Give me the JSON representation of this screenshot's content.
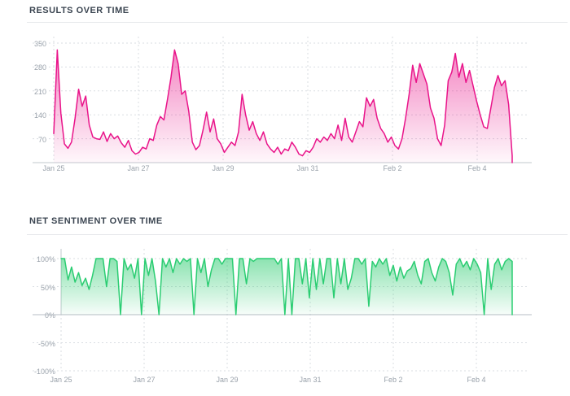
{
  "page": {
    "background": "#ffffff",
    "text_color": "#3b4551",
    "tick_color": "#9aa2ab",
    "grid_color": "#d9dde2",
    "axis_color": "#c2c8ce"
  },
  "chart_data": [
    {
      "type": "area",
      "title": "RESULTS OVER TIME",
      "xlabel": "",
      "ylabel": "",
      "ylim": [
        0,
        350
      ],
      "grid": "dashed",
      "legend": "none",
      "line_color": "#e9148a",
      "fill_color": "#e9148a",
      "fill_opacity_top": 0.55,
      "fill_opacity_bottom": 0.03,
      "x_tick_labels": [
        "Jan 25",
        "Jan 27",
        "Jan 29",
        "Jan 31",
        "Feb 2",
        "Feb 4"
      ],
      "y_ticks": [
        {
          "value": 350,
          "label": "350"
        },
        {
          "value": 280,
          "label": "280"
        },
        {
          "value": 210,
          "label": "210"
        },
        {
          "value": 140,
          "label": "140"
        },
        {
          "value": 70,
          "label": "70"
        }
      ],
      "x_description": "~2-hour intervals from Jan 25 through Feb 5",
      "values": [
        85,
        330,
        145,
        55,
        42,
        60,
        130,
        215,
        165,
        195,
        110,
        75,
        70,
        68,
        90,
        62,
        85,
        70,
        78,
        58,
        45,
        65,
        35,
        25,
        30,
        45,
        40,
        70,
        65,
        110,
        135,
        125,
        185,
        250,
        330,
        290,
        200,
        210,
        150,
        60,
        38,
        50,
        95,
        148,
        90,
        128,
        70,
        55,
        30,
        45,
        60,
        50,
        90,
        200,
        140,
        95,
        120,
        85,
        65,
        90,
        55,
        40,
        30,
        45,
        25,
        40,
        35,
        60,
        45,
        25,
        20,
        35,
        30,
        45,
        70,
        60,
        75,
        65,
        85,
        70,
        110,
        65,
        130,
        75,
        60,
        90,
        120,
        105,
        190,
        165,
        185,
        130,
        100,
        85,
        60,
        75,
        50,
        40,
        70,
        130,
        200,
        285,
        235,
        290,
        260,
        230,
        160,
        130,
        70,
        50,
        110,
        240,
        265,
        320,
        250,
        290,
        235,
        270,
        225,
        180,
        140,
        105,
        100,
        160,
        220,
        255,
        225,
        240,
        170,
        20
      ]
    },
    {
      "type": "area",
      "title": "NET SENTIMENT OVER TIME",
      "xlabel": "",
      "ylabel": "",
      "ylim": [
        -100,
        100
      ],
      "grid": "dashed",
      "legend": "none",
      "line_color": "#2bcd72",
      "fill_color": "#2ecc71",
      "fill_opacity_top": 0.55,
      "fill_opacity_bottom": 0.04,
      "x_tick_labels": [
        "Jan 25",
        "Jan 27",
        "Jan 29",
        "Jan 31",
        "Feb 2",
        "Feb 4"
      ],
      "y_ticks": [
        {
          "value": 100,
          "label": "100%"
        },
        {
          "value": 50,
          "label": "50%"
        },
        {
          "value": 0,
          "label": "0%",
          "solid": true
        },
        {
          "value": -50,
          "label": "-50%"
        },
        {
          "value": -100,
          "label": "-100%"
        }
      ],
      "x_description": "~2-hour intervals from Jan 25 through Feb 5, net sentiment percent",
      "values": [
        100,
        100,
        62,
        85,
        58,
        75,
        52,
        65,
        45,
        70,
        100,
        100,
        100,
        50,
        100,
        100,
        95,
        0,
        100,
        80,
        90,
        65,
        100,
        0,
        100,
        70,
        100,
        60,
        0,
        100,
        85,
        100,
        75,
        100,
        90,
        100,
        95,
        100,
        0,
        100,
        75,
        100,
        50,
        80,
        100,
        100,
        90,
        100,
        100,
        100,
        0,
        100,
        100,
        55,
        100,
        95,
        100,
        100,
        100,
        100,
        100,
        100,
        90,
        100,
        0,
        100,
        0,
        100,
        100,
        55,
        100,
        30,
        100,
        45,
        100,
        55,
        100,
        100,
        30,
        100,
        55,
        100,
        45,
        65,
        100,
        100,
        90,
        100,
        15,
        95,
        85,
        100,
        90,
        100,
        70,
        88,
        60,
        85,
        65,
        78,
        82,
        95,
        70,
        55,
        95,
        100,
        75,
        60,
        85,
        100,
        95,
        75,
        35,
        90,
        100,
        85,
        95,
        80,
        100,
        90,
        75,
        0,
        100,
        45,
        90,
        100,
        80,
        95,
        100,
        95
      ]
    }
  ]
}
